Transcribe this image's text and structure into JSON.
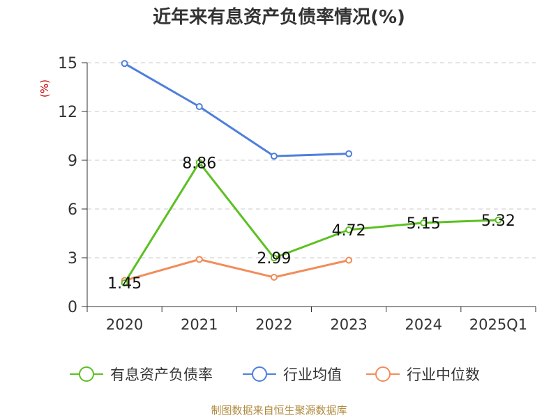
{
  "title": "近年来有息资产负债率情况(%)",
  "source": "制图数据来自恒生聚源数据库",
  "chart_data": {
    "type": "line",
    "title": "近年来有息资产负债率情况(%)",
    "ylabel": "(%)",
    "xlabel": "",
    "categories": [
      "2020",
      "2021",
      "2022",
      "2023",
      "2024",
      "2025Q1"
    ],
    "ylim": [
      0,
      15
    ],
    "yticks": [
      0,
      3,
      6,
      9,
      12,
      15
    ],
    "grid": "horizontal dashed",
    "legend_position": "bottom",
    "series": [
      {
        "name": "有息资产负债率",
        "color": "#5cc022",
        "values": [
          1.45,
          8.86,
          2.99,
          4.72,
          5.15,
          5.32
        ],
        "labels": [
          "1.45",
          "8.86",
          "2.99",
          "4.72",
          "5.15",
          "5.32"
        ]
      },
      {
        "name": "行业均值",
        "color": "#4f7fdd",
        "values": [
          14.95,
          12.3,
          9.25,
          9.4,
          null,
          null
        ]
      },
      {
        "name": "行业中位数",
        "color": "#f28c5a",
        "values": [
          1.6,
          2.9,
          1.8,
          2.85,
          null,
          null
        ]
      }
    ]
  }
}
